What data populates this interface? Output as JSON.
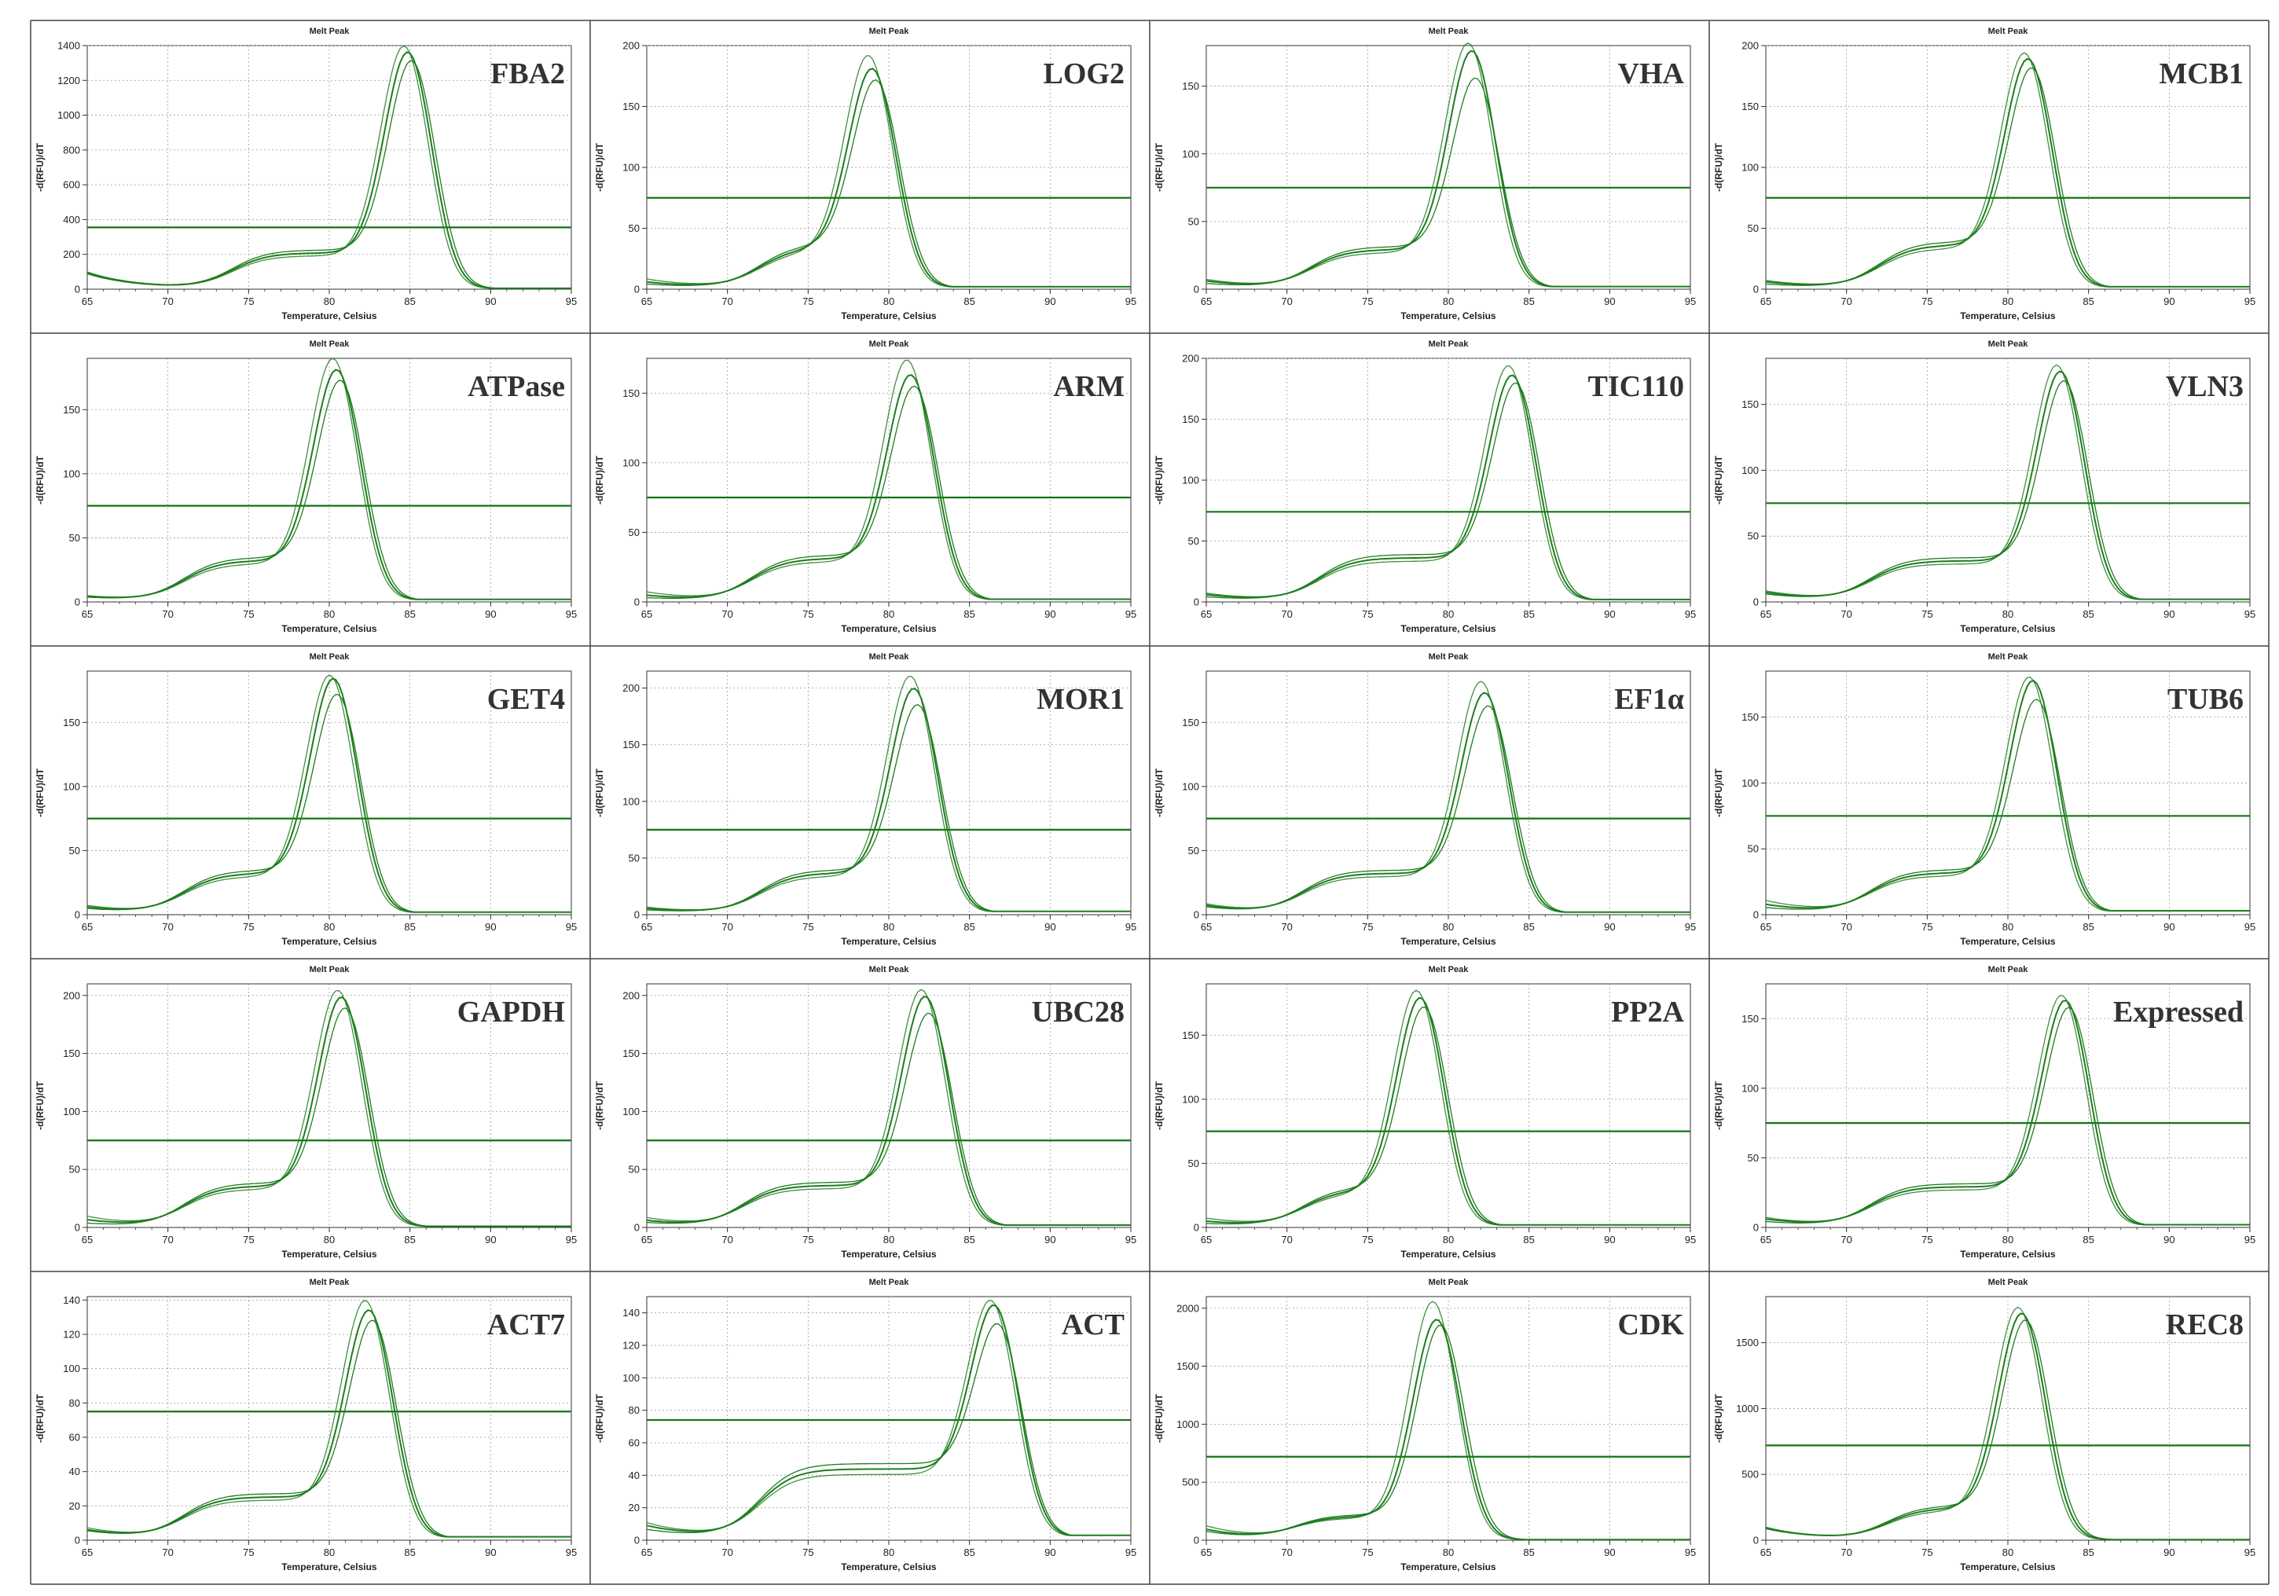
{
  "figure": {
    "grid_color": "#444444"
  },
  "style": {
    "line_color": "#1e7d1e",
    "threshold_color": "#137413"
  },
  "chart_data": [
    {
      "type": "line",
      "title": "Melt Peak",
      "gene": "FBA2",
      "xlabel": "Temperature, Celsius",
      "ylabel": "-d(RFU)/dT",
      "xlim": [
        65,
        95
      ],
      "ylim": [
        0,
        1400
      ],
      "yticks": [
        0,
        200,
        400,
        600,
        800,
        1000,
        1200,
        1400
      ],
      "xticks": [
        65,
        70,
        75,
        80,
        85,
        90,
        95
      ],
      "threshold": 355,
      "peak_x": 84.9,
      "peak_ys": [
        1390,
        1360,
        1320
      ],
      "shoulder_x": 76.5,
      "shoulder_y": 205,
      "start_ys": [
        150,
        145,
        160
      ],
      "end_y": 5,
      "grid": true
    },
    {
      "type": "line",
      "title": "Melt Peak",
      "gene": "LOG2",
      "xlabel": "Temperature, Celsius",
      "ylabel": "-d(RFU)/dT",
      "xlim": [
        65,
        95
      ],
      "ylim": [
        0,
        200
      ],
      "yticks": [
        0,
        50,
        100,
        150,
        200
      ],
      "xticks": [
        65,
        70,
        75,
        80,
        85,
        90,
        95
      ],
      "threshold": 75,
      "peak_x": 79.0,
      "peak_ys": [
        190,
        180,
        172
      ],
      "shoulder_x": 74.5,
      "shoulder_y": 33,
      "start_ys": [
        12,
        8,
        5
      ],
      "end_y": 2,
      "grid": true
    },
    {
      "type": "line",
      "title": "Melt Peak",
      "gene": "VHA",
      "xlabel": "Temperature, Celsius",
      "ylabel": "-d(RFU)/dT",
      "xlim": [
        65,
        95
      ],
      "ylim": [
        0,
        180
      ],
      "yticks": [
        0,
        50,
        100,
        150
      ],
      "xticks": [
        65,
        70,
        75,
        80,
        85,
        90,
        95
      ],
      "threshold": 75,
      "peak_x": 81.5,
      "peak_ys": [
        180,
        175,
        156
      ],
      "shoulder_x": 74.0,
      "shoulder_y": 28,
      "start_ys": [
        10,
        8,
        5
      ],
      "end_y": 2,
      "grid": true
    },
    {
      "type": "line",
      "title": "Melt Peak",
      "gene": "MCB1",
      "xlabel": "Temperature, Celsius",
      "ylabel": "-d(RFU)/dT",
      "xlim": [
        65,
        95
      ],
      "ylim": [
        0,
        200
      ],
      "yticks": [
        0,
        50,
        100,
        150,
        200
      ],
      "xticks": [
        65,
        70,
        75,
        80,
        85,
        90,
        95
      ],
      "threshold": 75,
      "peak_x": 81.3,
      "peak_ys": [
        192,
        188,
        182
      ],
      "shoulder_x": 74.5,
      "shoulder_y": 35,
      "start_ys": [
        10,
        8,
        5
      ],
      "end_y": 2,
      "grid": true
    },
    {
      "type": "line",
      "title": "Melt Peak",
      "gene": "ATPase",
      "xlabel": "Temperature, Celsius",
      "ylabel": "-d(RFU)/dT",
      "xlim": [
        65,
        95
      ],
      "ylim": [
        0,
        190
      ],
      "yticks": [
        0,
        50,
        100,
        150
      ],
      "xticks": [
        65,
        70,
        75,
        80,
        85,
        90,
        95
      ],
      "threshold": 75,
      "peak_x": 80.5,
      "peak_ys": [
        188,
        180,
        173
      ],
      "shoulder_x": 73.5,
      "shoulder_y": 31,
      "start_ys": [
        6,
        5,
        4
      ],
      "end_y": 2,
      "grid": true
    },
    {
      "type": "line",
      "title": "Melt Peak",
      "gene": "ARM",
      "xlabel": "Temperature, Celsius",
      "ylabel": "-d(RFU)/dT",
      "xlim": [
        65,
        95
      ],
      "ylim": [
        0,
        175
      ],
      "yticks": [
        0,
        50,
        100,
        150
      ],
      "xticks": [
        65,
        70,
        75,
        80,
        85,
        90,
        95
      ],
      "threshold": 75,
      "peak_x": 81.4,
      "peak_ys": [
        172,
        162,
        155
      ],
      "shoulder_x": 74.0,
      "shoulder_y": 30,
      "start_ys": [
        10,
        6,
        3
      ],
      "end_y": 2,
      "grid": true
    },
    {
      "type": "line",
      "title": "Melt Peak",
      "gene": "TIC110",
      "xlabel": "Temperature, Celsius",
      "ylabel": "-d(RFU)/dT",
      "xlim": [
        65,
        95
      ],
      "ylim": [
        0,
        200
      ],
      "yticks": [
        0,
        50,
        100,
        150,
        200
      ],
      "xticks": [
        65,
        70,
        75,
        80,
        85,
        90,
        95
      ],
      "threshold": 74,
      "peak_x": 84.0,
      "peak_ys": [
        192,
        185,
        180
      ],
      "shoulder_x": 74.5,
      "shoulder_y": 35,
      "start_ys": [
        10,
        8,
        5
      ],
      "end_y": 2,
      "grid": true
    },
    {
      "type": "line",
      "title": "Melt Peak",
      "gene": "VLN3",
      "xlabel": "Temperature, Celsius",
      "ylabel": "-d(RFU)/dT",
      "xlim": [
        65,
        95
      ],
      "ylim": [
        0,
        185
      ],
      "yticks": [
        0,
        50,
        100,
        150
      ],
      "xticks": [
        65,
        70,
        75,
        80,
        85,
        90,
        95
      ],
      "threshold": 75,
      "peak_x": 83.3,
      "peak_ys": [
        178,
        174,
        168
      ],
      "shoulder_x": 74.0,
      "shoulder_y": 30,
      "start_ys": [
        12,
        10,
        8
      ],
      "end_y": 2,
      "grid": true
    },
    {
      "type": "line",
      "title": "Melt Peak",
      "gene": "GET4",
      "xlabel": "Temperature, Celsius",
      "ylabel": "-d(RFU)/dT",
      "xlim": [
        65,
        95
      ],
      "ylim": [
        0,
        190
      ],
      "yticks": [
        0,
        50,
        100,
        150
      ],
      "xticks": [
        65,
        70,
        75,
        80,
        85,
        90,
        95
      ],
      "threshold": 75,
      "peak_x": 80.3,
      "peak_ys": [
        185,
        183,
        172
      ],
      "shoulder_x": 73.5,
      "shoulder_y": 31,
      "start_ys": [
        10,
        8,
        6
      ],
      "end_y": 2,
      "grid": true
    },
    {
      "type": "line",
      "title": "Melt Peak",
      "gene": "MOR1",
      "xlabel": "Temperature, Celsius",
      "ylabel": "-d(RFU)/dT",
      "xlim": [
        65,
        95
      ],
      "ylim": [
        0,
        215
      ],
      "yticks": [
        0,
        50,
        100,
        150,
        200
      ],
      "xticks": [
        65,
        70,
        75,
        80,
        85,
        90,
        95
      ],
      "threshold": 75,
      "peak_x": 81.6,
      "peak_ys": [
        208,
        198,
        185
      ],
      "shoulder_x": 74.5,
      "shoulder_y": 35,
      "start_ys": [
        8,
        6,
        4
      ],
      "end_y": 3,
      "grid": true
    },
    {
      "type": "line",
      "title": "Melt Peak",
      "gene": "EF1α",
      "xlabel": "Temperature, Celsius",
      "ylabel": "-d(RFU)/dT",
      "xlim": [
        65,
        95
      ],
      "ylim": [
        0,
        190
      ],
      "yticks": [
        0,
        50,
        100,
        150
      ],
      "xticks": [
        65,
        70,
        75,
        80,
        85,
        90,
        95
      ],
      "threshold": 75,
      "peak_x": 82.3,
      "peak_ys": [
        180,
        172,
        163
      ],
      "shoulder_x": 73.5,
      "shoulder_y": 31,
      "start_ys": [
        12,
        10,
        8
      ],
      "end_y": 2,
      "grid": true
    },
    {
      "type": "line",
      "title": "Melt Peak",
      "gene": "TUB6",
      "xlabel": "Temperature, Celsius",
      "ylabel": "-d(RFU)/dT",
      "xlim": [
        65,
        95
      ],
      "ylim": [
        0,
        185
      ],
      "yticks": [
        0,
        50,
        100,
        150
      ],
      "xticks": [
        65,
        70,
        75,
        80,
        85,
        90,
        95
      ],
      "threshold": 75,
      "peak_x": 81.6,
      "peak_ys": [
        178,
        176,
        163
      ],
      "shoulder_x": 74.0,
      "shoulder_y": 30,
      "start_ys": [
        15,
        10,
        6
      ],
      "end_y": 3,
      "grid": true
    },
    {
      "type": "line",
      "title": "Melt Peak",
      "gene": "GAPDH",
      "xlabel": "Temperature, Celsius",
      "ylabel": "-d(RFU)/dT",
      "xlim": [
        65,
        95
      ],
      "ylim": [
        0,
        210
      ],
      "yticks": [
        0,
        50,
        100,
        150,
        200
      ],
      "xticks": [
        65,
        70,
        75,
        80,
        85,
        90,
        95
      ],
      "threshold": 75,
      "peak_x": 80.8,
      "peak_ys": [
        203,
        198,
        190
      ],
      "shoulder_x": 73.5,
      "shoulder_y": 35,
      "start_ys": [
        15,
        10,
        5
      ],
      "end_y": 1,
      "grid": true
    },
    {
      "type": "line",
      "title": "Melt Peak",
      "gene": "UBC28",
      "xlabel": "Temperature, Celsius",
      "ylabel": "-d(RFU)/dT",
      "xlim": [
        65,
        95
      ],
      "ylim": [
        0,
        210
      ],
      "yticks": [
        0,
        50,
        100,
        150,
        200
      ],
      "xticks": [
        65,
        70,
        75,
        80,
        85,
        90,
        95
      ],
      "threshold": 75,
      "peak_x": 82.3,
      "peak_ys": [
        203,
        198,
        185
      ],
      "shoulder_x": 73.5,
      "shoulder_y": 35,
      "start_ys": [
        12,
        8,
        5
      ],
      "end_y": 2,
      "grid": true
    },
    {
      "type": "line",
      "title": "Melt Peak",
      "gene": "PP2A",
      "xlabel": "Temperature, Celsius",
      "ylabel": "-d(RFU)/dT",
      "xlim": [
        65,
        95
      ],
      "ylim": [
        0,
        190
      ],
      "yticks": [
        0,
        50,
        100,
        150
      ],
      "xticks": [
        65,
        70,
        75,
        80,
        85,
        90,
        95
      ],
      "threshold": 75,
      "peak_x": 78.3,
      "peak_ys": [
        183,
        178,
        172
      ],
      "shoulder_x": 73.5,
      "shoulder_y": 28,
      "start_ys": [
        10,
        6,
        3
      ],
      "end_y": 2,
      "grid": true
    },
    {
      "type": "line",
      "title": "Melt Peak",
      "gene": "Expressed",
      "xlabel": "Temperature, Celsius",
      "ylabel": "-d(RFU)/dT",
      "xlim": [
        65,
        95
      ],
      "ylim": [
        0,
        175
      ],
      "yticks": [
        0,
        50,
        100,
        150
      ],
      "xticks": [
        65,
        70,
        75,
        80,
        85,
        90,
        95
      ],
      "threshold": 75,
      "peak_x": 83.6,
      "peak_ys": [
        165,
        162,
        158
      ],
      "shoulder_x": 74.0,
      "shoulder_y": 28,
      "start_ys": [
        10,
        8,
        5
      ],
      "end_y": 2,
      "grid": true
    },
    {
      "type": "line",
      "title": "Melt Peak",
      "gene": "ACT7",
      "xlabel": "Temperature, Celsius",
      "ylabel": "-d(RFU)/dT",
      "xlim": [
        65,
        95
      ],
      "ylim": [
        0,
        142
      ],
      "yticks": [
        0,
        20,
        40,
        60,
        80,
        100,
        120,
        140
      ],
      "xticks": [
        65,
        70,
        75,
        80,
        85,
        90,
        95
      ],
      "threshold": 75,
      "peak_x": 82.5,
      "peak_ys": [
        138,
        133,
        128
      ],
      "shoulder_x": 73.5,
      "shoulder_y": 24,
      "start_ys": [
        10,
        8,
        7
      ],
      "end_y": 2,
      "grid": true
    },
    {
      "type": "line",
      "title": "Melt Peak",
      "gene": "ACT",
      "xlabel": "Temperature, Celsius",
      "ylabel": "-d(RFU)/dT",
      "xlim": [
        65,
        95
      ],
      "ylim": [
        0,
        150
      ],
      "yticks": [
        0,
        20,
        40,
        60,
        80,
        100,
        120,
        140
      ],
      "xticks": [
        65,
        70,
        75,
        80,
        85,
        90,
        95
      ],
      "threshold": 74,
      "peak_x": 86.6,
      "peak_ys": [
        145,
        143,
        133
      ],
      "shoulder_x": 74.5,
      "shoulder_y": 42,
      "start_ys": [
        15,
        12,
        8
      ],
      "end_y": 3,
      "grid": true
    },
    {
      "type": "line",
      "title": "Melt Peak",
      "gene": "CDK",
      "xlabel": "Temperature, Celsius",
      "ylabel": "-d(RFU)/dT",
      "xlim": [
        65,
        95
      ],
      "ylim": [
        0,
        2100
      ],
      "yticks": [
        0,
        500,
        1000,
        1500,
        2000
      ],
      "xticks": [
        65,
        70,
        75,
        80,
        85,
        90,
        95
      ],
      "threshold": 720,
      "peak_x": 79.3,
      "peak_ys": [
        2050,
        1900,
        1860
      ],
      "shoulder_x": 73.0,
      "shoulder_y": 200,
      "start_ys": [
        200,
        150,
        120
      ],
      "end_y": 5,
      "grid": true
    },
    {
      "type": "line",
      "title": "Melt Peak",
      "gene": "REC8",
      "xlabel": "Temperature, Celsius",
      "ylabel": "-d(RFU)/dT",
      "xlim": [
        65,
        95
      ],
      "ylim": [
        0,
        1850
      ],
      "yticks": [
        0,
        500,
        1000,
        1500
      ],
      "xticks": [
        65,
        70,
        75,
        80,
        85,
        90,
        95
      ],
      "threshold": 720,
      "peak_x": 80.9,
      "peak_ys": [
        1760,
        1720,
        1680
      ],
      "shoulder_x": 75.0,
      "shoulder_y": 240,
      "start_ys": [
        160,
        150,
        140
      ],
      "end_y": 5,
      "grid": true
    }
  ]
}
